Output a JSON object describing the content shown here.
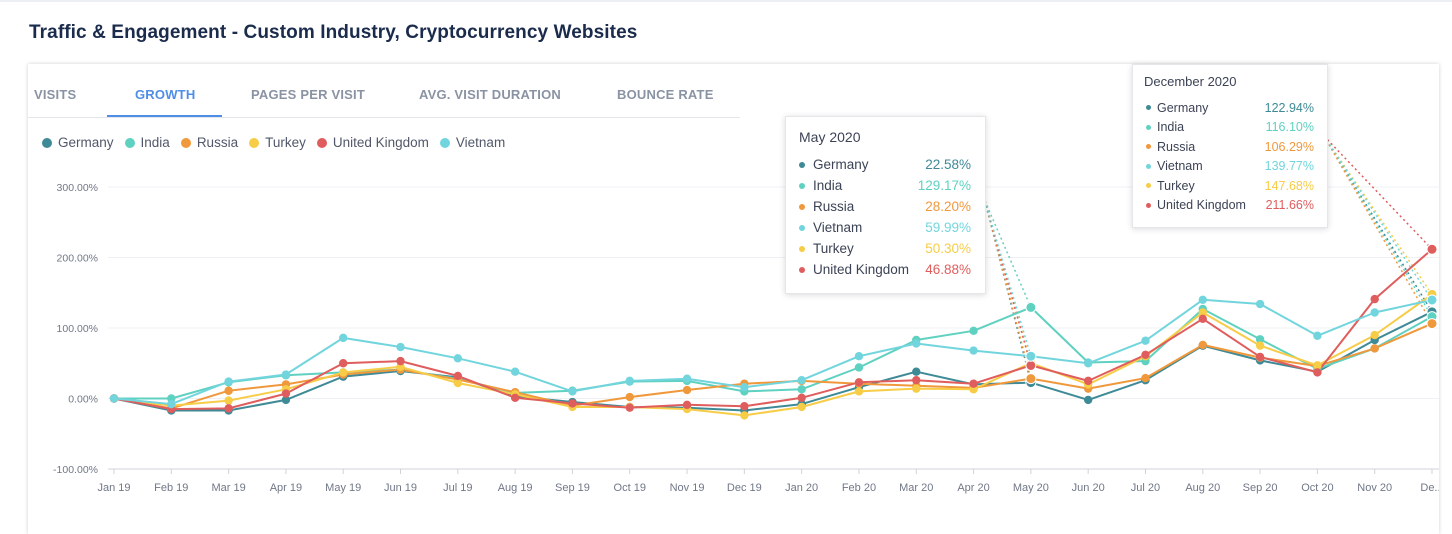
{
  "page": {
    "title": "Traffic & Engagement - Custom Industry, Cryptocurrency Websites"
  },
  "tabs": [
    {
      "label": "VISITS",
      "active": false
    },
    {
      "label": "GROWTH",
      "active": true
    },
    {
      "label": "PAGES PER VISIT",
      "active": false
    },
    {
      "label": "AVG. VISIT DURATION",
      "active": false
    },
    {
      "label": "BOUNCE RATE",
      "active": false
    }
  ],
  "colors": {
    "Germany": "#3e8a96",
    "India": "#5fd1c0",
    "Russia": "#f0983c",
    "Turkey": "#f7cc47",
    "United Kingdom": "#e05d5d",
    "Vietnam": "#72d5dd",
    "accent": "#4f8ee6"
  },
  "tooltips": [
    {
      "title": "May 2020",
      "rows": [
        {
          "name": "Germany",
          "value": "22.58%"
        },
        {
          "name": "India",
          "value": "129.17%"
        },
        {
          "name": "Russia",
          "value": "28.20%"
        },
        {
          "name": "Vietnam",
          "value": "59.99%"
        },
        {
          "name": "Turkey",
          "value": "50.30%"
        },
        {
          "name": "United Kingdom",
          "value": "46.88%"
        }
      ]
    },
    {
      "title": "December 2020",
      "rows": [
        {
          "name": "Germany",
          "value": "122.94%"
        },
        {
          "name": "India",
          "value": "116.10%"
        },
        {
          "name": "Russia",
          "value": "106.29%"
        },
        {
          "name": "Vietnam",
          "value": "139.77%"
        },
        {
          "name": "Turkey",
          "value": "147.68%"
        },
        {
          "name": "United Kingdom",
          "value": "211.66%"
        }
      ]
    }
  ],
  "chart_data": {
    "type": "line",
    "title": "",
    "xlabel": "",
    "ylabel": "",
    "ylim": [
      -100,
      300
    ],
    "yticks": [
      -100,
      0,
      100,
      200,
      300
    ],
    "ytick_labels": [
      "-100.00%",
      "0.00%",
      "100.00%",
      "200.00%",
      "300.00%"
    ],
    "grid": true,
    "legend_position": "top-left",
    "categories": [
      "Jan 19",
      "Feb 19",
      "Mar 19",
      "Apr 19",
      "May 19",
      "Jun 19",
      "Jul 19",
      "Aug 19",
      "Sep 19",
      "Oct 19",
      "Nov 19",
      "Dec 19",
      "Jan 20",
      "Feb 20",
      "Mar 20",
      "Apr 20",
      "May 20",
      "Jun 20",
      "Jul 20",
      "Aug 20",
      "Sep 20",
      "Oct 20",
      "Nov 20",
      "De..."
    ],
    "series": [
      {
        "name": "Germany",
        "values": [
          0,
          -17,
          -17,
          -2,
          31,
          39,
          30,
          3,
          -5,
          -12,
          -13,
          -17,
          -8,
          16,
          38,
          20,
          22.58,
          -2,
          26,
          75,
          54,
          38,
          83,
          122.94
        ]
      },
      {
        "name": "India",
        "values": [
          0,
          0,
          23,
          33,
          37,
          41,
          28,
          8,
          11,
          24,
          25,
          10,
          13,
          44,
          83,
          96,
          129.17,
          51,
          53,
          127,
          84,
          42,
          71,
          116.1
        ]
      },
      {
        "name": "Russia",
        "values": [
          0,
          -14,
          11,
          20,
          34,
          41,
          27,
          9,
          -10,
          2,
          12,
          21,
          25,
          21,
          18,
          15,
          28.2,
          14,
          29,
          76,
          58,
          46,
          71,
          106.29
        ]
      },
      {
        "name": "Turkey",
        "values": [
          0,
          -10,
          -3,
          13,
          37,
          45,
          22,
          6,
          -12,
          -12,
          -15,
          -24,
          -12,
          10,
          14,
          13,
          50.3,
          20,
          60,
          122,
          75,
          47,
          90,
          147.68
        ]
      },
      {
        "name": "United Kingdom",
        "values": [
          0,
          -15,
          -14,
          7,
          50,
          53,
          32,
          1,
          -7,
          -13,
          -9,
          -11,
          1,
          23,
          26,
          21,
          46.88,
          25,
          62,
          113,
          59,
          37,
          141,
          211.66
        ]
      },
      {
        "name": "Vietnam",
        "values": [
          0,
          -8,
          24,
          34,
          86,
          73,
          57,
          38,
          10,
          25,
          28,
          16,
          26,
          60,
          78,
          68,
          59.99,
          50,
          82,
          140,
          134,
          89,
          122,
          139.77
        ]
      }
    ]
  }
}
